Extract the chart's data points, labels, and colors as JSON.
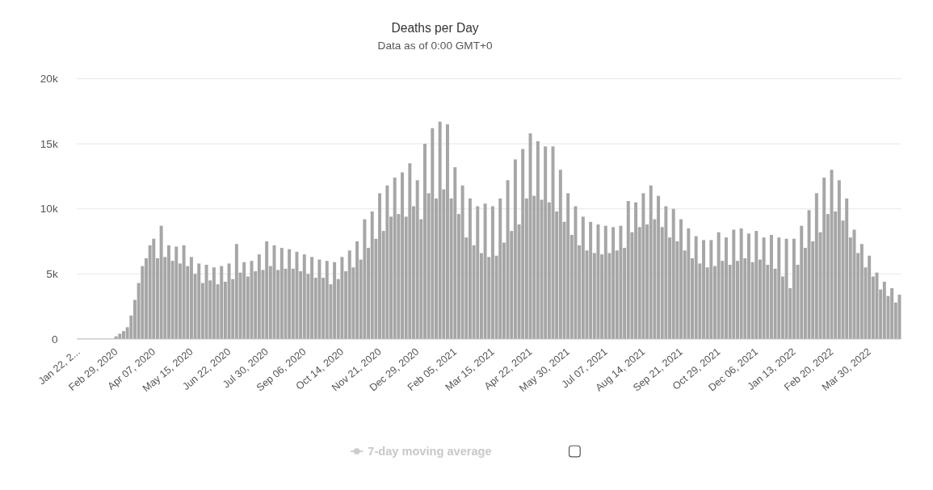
{
  "chart_data": {
    "type": "bar",
    "title": "Deaths per Day",
    "subtitle": "Data as of 0:00 GMT+0",
    "categories": [
      "Jan 22, 2...",
      null,
      null,
      null,
      null,
      null,
      null,
      null,
      null,
      null,
      "Feb 29, 2020",
      null,
      null,
      null,
      null,
      null,
      null,
      null,
      null,
      null,
      "Apr 07, 2020",
      null,
      null,
      null,
      null,
      null,
      null,
      null,
      null,
      null,
      "May 15, 2020",
      null,
      null,
      null,
      null,
      null,
      null,
      null,
      null,
      null,
      "Jun 22, 2020",
      null,
      null,
      null,
      null,
      null,
      null,
      null,
      null,
      null,
      "Jul 30, 2020",
      null,
      null,
      null,
      null,
      null,
      null,
      null,
      null,
      null,
      "Sep 06, 2020",
      null,
      null,
      null,
      null,
      null,
      null,
      null,
      null,
      null,
      "Oct 14, 2020",
      null,
      null,
      null,
      null,
      null,
      null,
      null,
      null,
      null,
      "Nov 21, 2020",
      null,
      null,
      null,
      null,
      null,
      null,
      null,
      null,
      null,
      "Dec 29, 2020",
      null,
      null,
      null,
      null,
      null,
      null,
      null,
      null,
      null,
      "Feb 05, 2021",
      null,
      null,
      null,
      null,
      null,
      null,
      null,
      null,
      null,
      "Mar 15, 2021",
      null,
      null,
      null,
      null,
      null,
      null,
      null,
      null,
      null,
      "Apr 22, 2021",
      null,
      null,
      null,
      null,
      null,
      null,
      null,
      null,
      null,
      "May 30, 2021",
      null,
      null,
      null,
      null,
      null,
      null,
      null,
      null,
      null,
      "Jul 07, 2021",
      null,
      null,
      null,
      null,
      null,
      null,
      null,
      null,
      null,
      "Aug 14, 2021",
      null,
      null,
      null,
      null,
      null,
      null,
      null,
      null,
      null,
      "Sep 21, 2021",
      null,
      null,
      null,
      null,
      null,
      null,
      null,
      null,
      null,
      "Oct 29, 2021",
      null,
      null,
      null,
      null,
      null,
      null,
      null,
      null,
      null,
      "Dec 06, 2021",
      null,
      null,
      null,
      null,
      null,
      null,
      null,
      null,
      null,
      "Jan 13, 2022",
      null,
      null,
      null,
      null,
      null,
      null,
      null,
      null,
      null,
      "Feb 20, 2022",
      null,
      null,
      null,
      null,
      null,
      null,
      null,
      null,
      null,
      "Mar 30, 2022",
      null,
      null,
      null,
      null,
      null,
      null,
      null,
      null
    ],
    "series": [
      {
        "color": "#a6a6a6",
        "values": [
          0,
          0,
          0,
          0,
          0,
          0,
          0,
          0,
          0,
          0,
          200,
          400,
          600,
          900,
          1800,
          3000,
          4300,
          5600,
          6200,
          7200,
          7700,
          6200,
          8700,
          6300,
          7200,
          6000,
          7100,
          5800,
          7200,
          5600,
          6300,
          5000,
          5800,
          4300,
          5700,
          4500,
          5500,
          4200,
          5600,
          4400,
          5800,
          4600,
          7300,
          5100,
          5900,
          4800,
          6000,
          5200,
          6500,
          5300,
          7500,
          5600,
          7200,
          5300,
          7000,
          5400,
          6900,
          5400,
          6700,
          5200,
          6500,
          5000,
          6300,
          4700,
          6100,
          4700,
          6000,
          4200,
          5900,
          4600,
          6300,
          5200,
          6800,
          5500,
          7500,
          6100,
          9200,
          7000,
          9800,
          7700,
          11200,
          8300,
          11800,
          9400,
          12400,
          9600,
          12800,
          9400,
          13500,
          10200,
          12200,
          9200,
          15000,
          11200,
          16200,
          10800,
          16700,
          11500,
          16500,
          10800,
          13200,
          9600,
          11800,
          7800,
          10800,
          7200,
          10200,
          6600,
          10400,
          6300,
          10200,
          6400,
          10800,
          7400,
          12200,
          8300,
          13800,
          8800,
          14600,
          10800,
          15800,
          11000,
          15200,
          10700,
          14800,
          10500,
          14800,
          9800,
          13000,
          9000,
          11200,
          8000,
          10200,
          7200,
          9400,
          6800,
          9000,
          6600,
          8800,
          6500,
          8700,
          6600,
          8600,
          6800,
          8700,
          7000,
          10600,
          8200,
          10500,
          8600,
          11200,
          8800,
          11800,
          9200,
          11000,
          8600,
          10200,
          7800,
          10000,
          7500,
          9200,
          6800,
          8500,
          6200,
          7900,
          5800,
          7600,
          5500,
          7600,
          5600,
          8200,
          6000,
          7800,
          5700,
          8400,
          6000,
          8500,
          6200,
          8100,
          5900,
          8300,
          6100,
          7800,
          5700,
          8000,
          5400,
          7800,
          4800,
          7700,
          3900,
          7700,
          5700,
          8700,
          7000,
          9900,
          7500,
          11200,
          8200,
          12400,
          9600,
          13000,
          9800,
          12200,
          9100,
          10800,
          7800,
          8400,
          6600,
          7300,
          5500,
          6400,
          4800,
          5100,
          3800,
          4400,
          3300,
          3900,
          2800,
          3400
        ]
      }
    ],
    "ylim": [
      0,
      20000
    ],
    "yticks": [
      0,
      {
        "value": 5000,
        "label": "5k"
      },
      {
        "value": 10000,
        "label": "10k"
      },
      {
        "value": 15000,
        "label": "15k"
      },
      {
        "value": 20000,
        "label": "20k"
      }
    ],
    "grid": "y",
    "annotations": [
      "7-day moving average"
    ]
  }
}
